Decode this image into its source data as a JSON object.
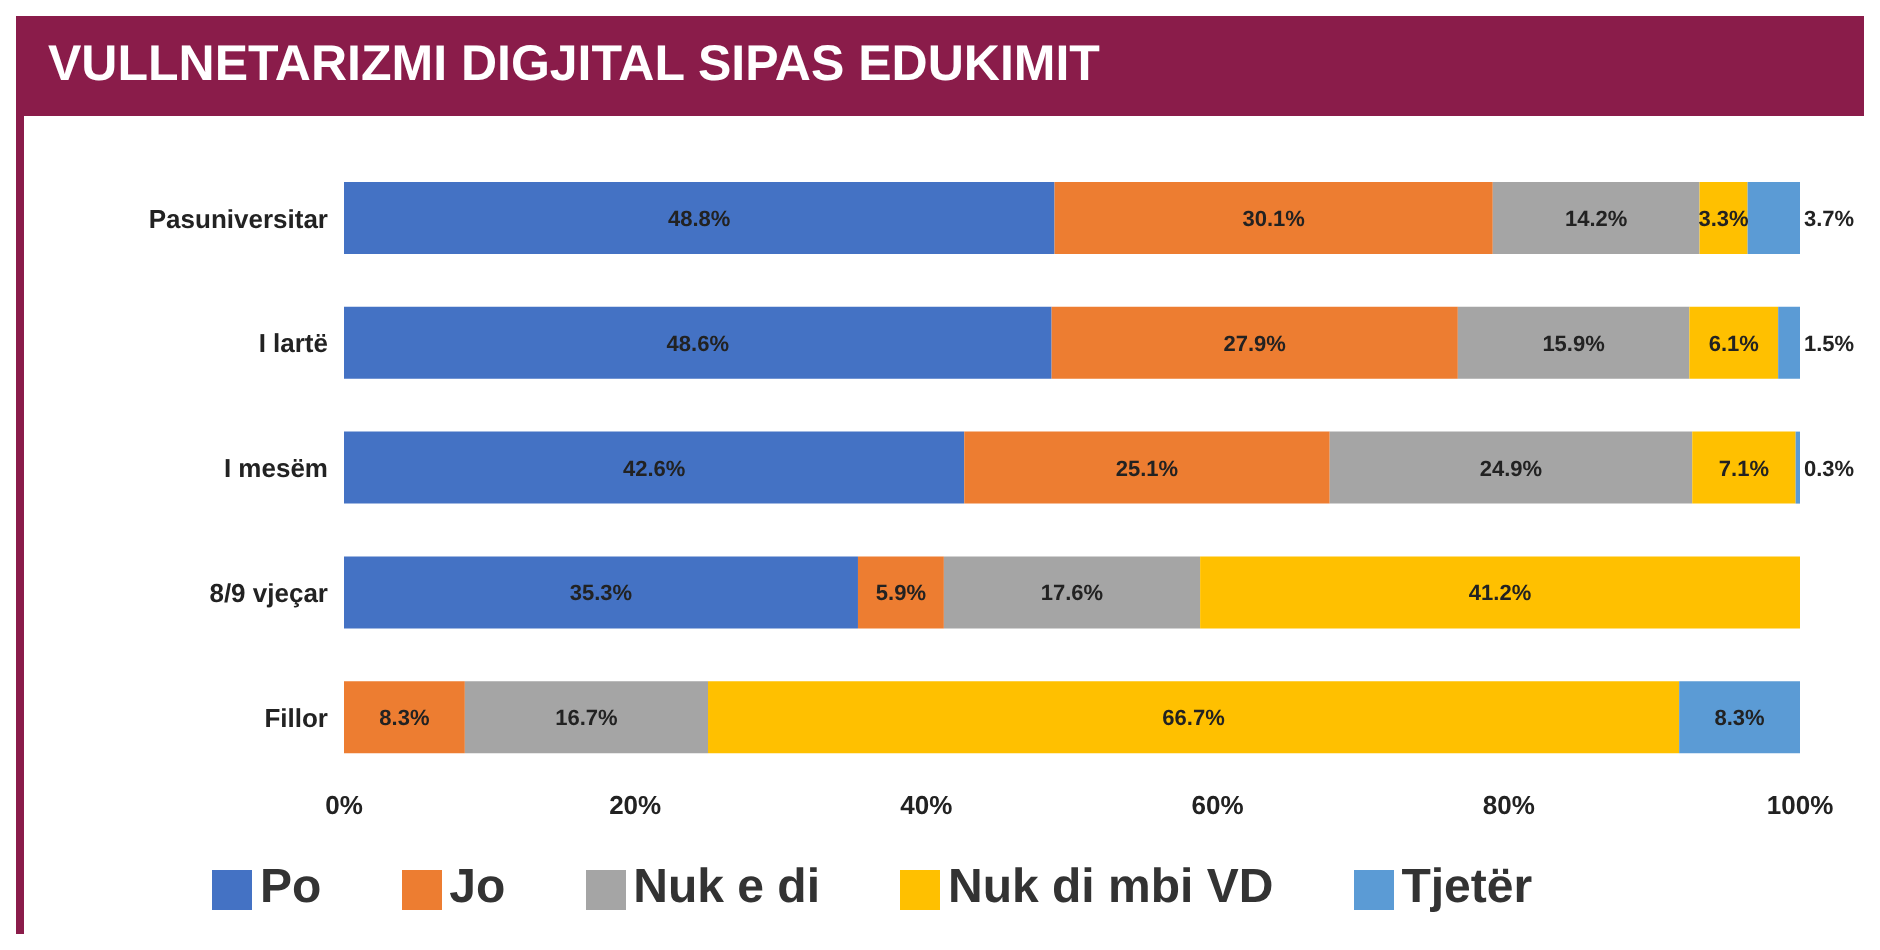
{
  "chart_data": {
    "type": "bar",
    "title": "VULLNETARIZMI DIGJITAL SIPAS EDUKIMIT",
    "orientation": "horizontal",
    "stacked": true,
    "legend": "bottom",
    "categories": [
      "Pasuniversitar",
      "I lartë",
      "I mesëm",
      "8/9 vjeçar",
      "Fillor"
    ],
    "xlim": [
      0,
      100
    ],
    "xticks": [
      {
        "value": 0,
        "label": "0%"
      },
      {
        "value": 20,
        "label": "20%"
      },
      {
        "value": 40,
        "label": "40%"
      },
      {
        "value": 60,
        "label": "60%"
      },
      {
        "value": 80,
        "label": "80%"
      },
      {
        "value": 100,
        "label": "100%"
      }
    ],
    "series": [
      {
        "name": "Po",
        "color": "#4472c4",
        "values": [
          48.8,
          48.6,
          42.6,
          35.3,
          null
        ],
        "value_labels": [
          "48.8%",
          "48.6%",
          "42.6%",
          "35.3%",
          null
        ]
      },
      {
        "name": "Jo",
        "color": "#ed7d31",
        "values": [
          30.1,
          27.9,
          25.1,
          5.9,
          8.3
        ],
        "value_labels": [
          "30.1%",
          "27.9%",
          "25.1%",
          "5.9%",
          "8.3%"
        ]
      },
      {
        "name": "Nuk e di",
        "color": "#a5a5a5",
        "values": [
          14.2,
          15.9,
          24.9,
          17.6,
          16.7
        ],
        "value_labels": [
          "14.2%",
          "15.9%",
          "24.9%",
          "17.6%",
          "16.7%"
        ]
      },
      {
        "name": "Nuk di mbi VD",
        "color": "#ffc000",
        "values": [
          3.3,
          6.1,
          7.1,
          41.2,
          66.7
        ],
        "value_labels": [
          "3.3%",
          "6.1%",
          "7.1%",
          "41.2%",
          "66.7%"
        ]
      },
      {
        "name": "Tjetër",
        "color": "#5b9bd5",
        "values": [
          3.7,
          1.5,
          0.3,
          null,
          8.3
        ],
        "value_labels": [
          "3.7%",
          "1.5%",
          "0.3%",
          null,
          "8.3%"
        ]
      }
    ]
  }
}
